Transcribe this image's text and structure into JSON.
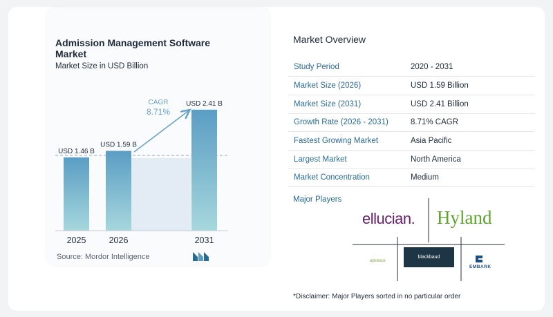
{
  "chart_panel": {
    "title": "Admission Management Software Market",
    "subtitle": "Market Size in USD Billion",
    "source": "Source:  Mordor Intelligence",
    "cagr_label": "CAGR",
    "cagr_value": "8.71%"
  },
  "chart_data": {
    "type": "bar",
    "title": "Admission Management Software Market",
    "subtitle": "Market Size in USD Billion",
    "categories": [
      "2025",
      "2026",
      "2031"
    ],
    "values": [
      1.46,
      1.59,
      2.41
    ],
    "data_labels": [
      "USD 1.46 B",
      "USD 1.59 B",
      "USD 2.41 B"
    ],
    "ylim": [
      0,
      2.6
    ],
    "grid": false,
    "colors": {
      "bar_top": "#5b9dc4",
      "bar_bottom": "#a6d7dd",
      "shade": "#e3ebf4",
      "arrow": "#6aa3c9",
      "reference": "#9aa4ae"
    }
  },
  "overview": {
    "title": "Market Overview",
    "rows": [
      {
        "key": "Study Period",
        "value": "2020 - 2031"
      },
      {
        "key": "Market Size (2026)",
        "value": "USD 1.59 Billion"
      },
      {
        "key": "Market Size (2031)",
        "value": "USD 2.41 Billion"
      },
      {
        "key": "Growth Rate (2026 - 2031)",
        "value": "8.71% CAGR"
      },
      {
        "key": "Fastest Growing Market",
        "value": "Asia Pacific"
      },
      {
        "key": "Largest Market",
        "value": "North America"
      },
      {
        "key": "Market Concentration",
        "value": "Medium"
      }
    ]
  },
  "players": {
    "title": "Major Players",
    "logos": [
      "ellucian.",
      "Hyland",
      "advance",
      "blackbaud",
      "EMBARK"
    ]
  },
  "disclaimer": "*Disclaimer: Major Players sorted in no particular order",
  "colors": {
    "key_text": "#2a6b95",
    "ellucian": "#6a1e6e",
    "hyland": "#5aa62a",
    "embark": "#1f4e86",
    "blackbaud_bg": "#1e3546"
  }
}
